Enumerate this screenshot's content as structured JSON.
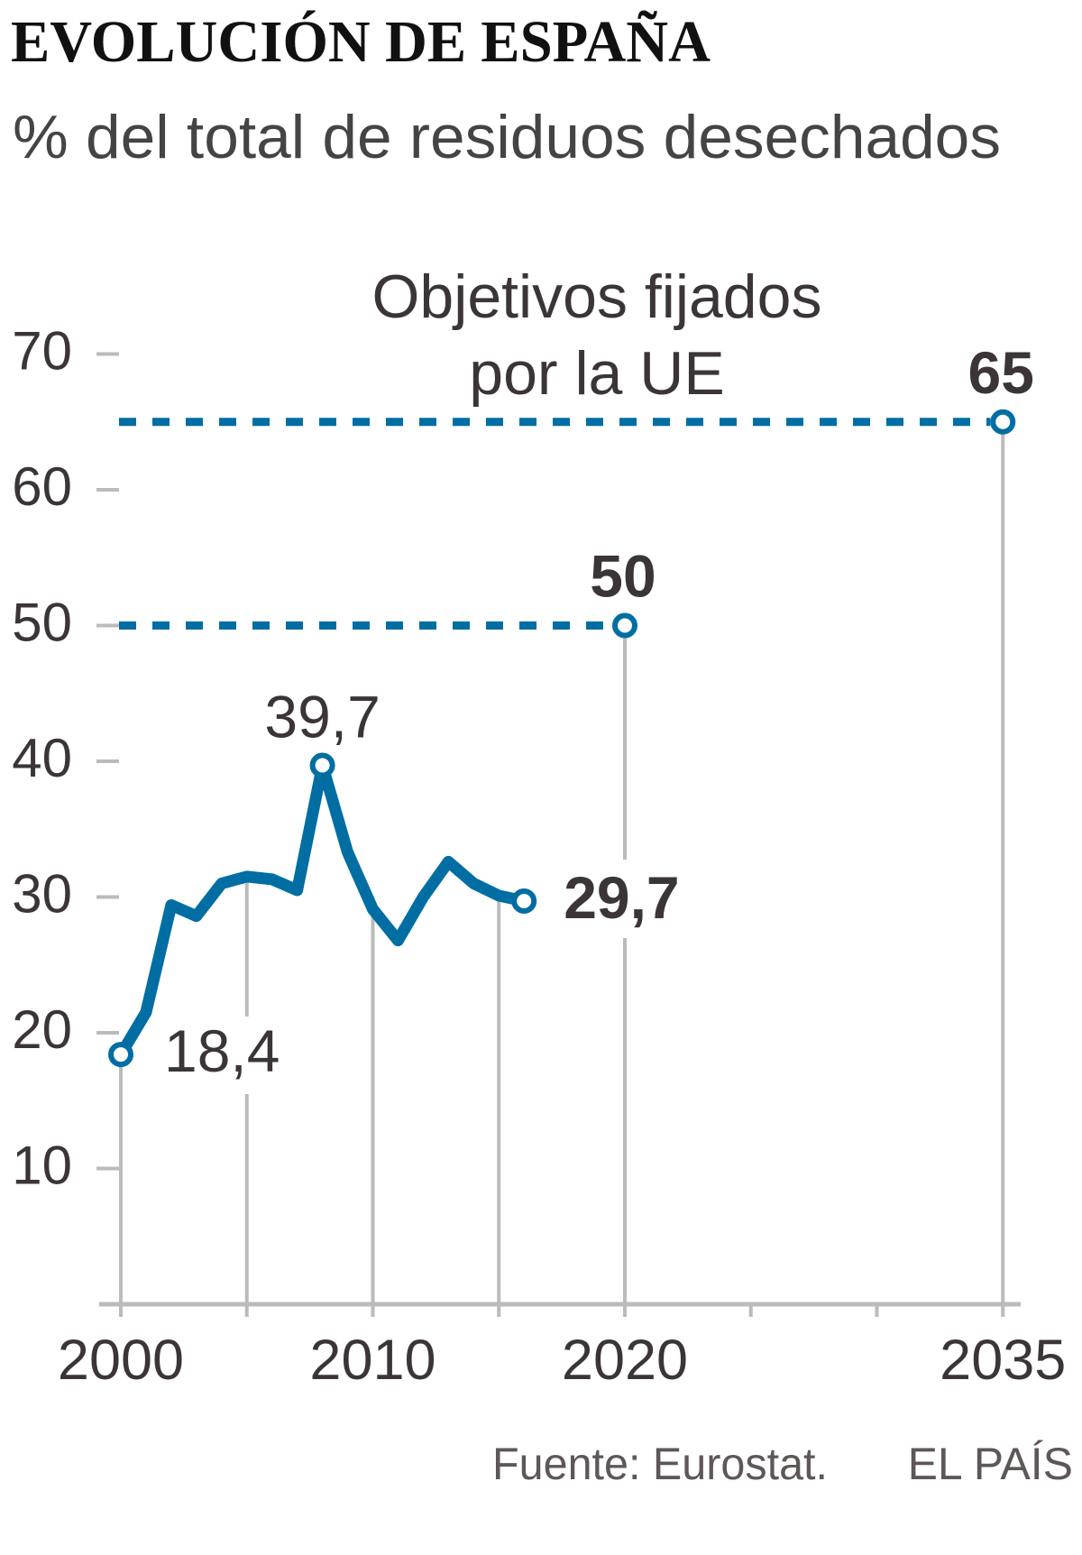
{
  "header": {
    "title": "EVOLUCIÓN DE ESPAÑA",
    "subtitle": "% del total de residuos desechados"
  },
  "annotation": {
    "line1": "Objetivos fijados",
    "line2": "por la UE"
  },
  "footer": {
    "source": "Fuente: Eurostat.",
    "brand": "EL PAÍS"
  },
  "colors": {
    "series": "#006ea3",
    "grid": "#bbbbbb",
    "text": "#3b3538"
  },
  "chart_data": {
    "type": "line",
    "title": "EVOLUCIÓN DE ESPAÑA",
    "subtitle": "% del total de residuos desechados",
    "xlabel": "",
    "ylabel": "",
    "xlim": [
      2000,
      2035
    ],
    "ylim": [
      0,
      70
    ],
    "yticks": [
      10,
      20,
      30,
      40,
      50,
      60,
      70
    ],
    "ytick_labels": [
      "10",
      "20",
      "30",
      "40",
      "50",
      "60",
      "70"
    ],
    "xticks": [
      2000,
      2005,
      2010,
      2015,
      2020,
      2025,
      2030,
      2035
    ],
    "xtick_labels": [
      {
        "year": 2000,
        "label": "2000"
      },
      {
        "year": 2010,
        "label": "2010"
      },
      {
        "year": 2020,
        "label": "2020"
      },
      {
        "year": 2035,
        "label": "2035"
      }
    ],
    "series": [
      {
        "name": "España",
        "x": [
          2000,
          2001,
          2002,
          2003,
          2004,
          2005,
          2006,
          2007,
          2008,
          2009,
          2010,
          2011,
          2012,
          2013,
          2014,
          2015,
          2016
        ],
        "values": [
          18.4,
          21.5,
          29.4,
          28.6,
          31.0,
          31.5,
          31.3,
          30.5,
          39.7,
          33.3,
          29.1,
          26.8,
          30.0,
          32.6,
          31.0,
          30.1,
          29.7
        ]
      }
    ],
    "targets": [
      {
        "year": 2020,
        "value": 50,
        "label": "50"
      },
      {
        "year": 2035,
        "value": 65,
        "label": "65"
      }
    ],
    "data_labels": [
      {
        "year": 2000,
        "value": 18.4,
        "label": "18,4",
        "emphasis": false
      },
      {
        "year": 2008,
        "value": 39.7,
        "label": "39,7",
        "emphasis": false
      },
      {
        "year": 2016,
        "value": 29.7,
        "label": "29,7",
        "emphasis": true
      }
    ],
    "grid": false,
    "legend": "none"
  }
}
